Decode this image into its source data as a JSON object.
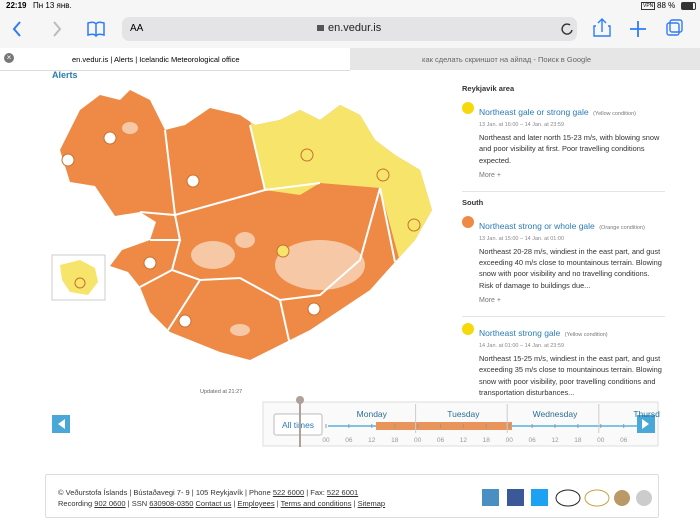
{
  "status_bar": {
    "time": "22:19",
    "date": "Пн 13 янв.",
    "vpn": "VPN",
    "battery": "88 %"
  },
  "browser": {
    "text_size": "AA",
    "url": "en.vedur.is",
    "tabs": [
      "en.vedur.is | Alerts | Icelandic Meteorological office",
      "как сделать скриншот на айпад - Поиск в Google"
    ]
  },
  "page": {
    "heading": "Alerts",
    "alerts": [
      {
        "section": "Reykjavik area",
        "items": [
          {
            "title": "Northeast gale or strong gale",
            "condition": "(Yellow condition)",
            "level": "yellow",
            "time": "13 Jan. at 16:00 – 14 Jan. at 23:59",
            "text": "Northeast and later north 15-23 m/s, with blowing snow and poor visibility at first. Poor travelling conditions expected.",
            "more": "More +"
          }
        ]
      },
      {
        "section": "South",
        "items": [
          {
            "title": "Northeast strong or whole gale",
            "condition": "(Orange condition)",
            "level": "orange",
            "time": "13 Jan. at 15:00 – 14 Jan. at 01:00",
            "text": "Northeast 20-28 m/s, windiest in the east part, and gust exceeding 40 m/s close to mountainous terrain. Blowing snow with poor visibility and no travelling conditions. Risk of damage to buildings due...",
            "more": "More +"
          },
          {
            "title": "Northeast strong gale",
            "condition": "(Yellow condition)",
            "level": "yellow",
            "time": "14 Jan. at 01:00 – 14 Jan. at 23:59",
            "text": "Northeast 15-25 m/s, windiest in the east part, and gust exceeding 35 m/s close to mountainous terrain. Blowing snow with poor visibility, poor travelling conditions and transportation disturbances..."
          }
        ]
      }
    ],
    "timeline": {
      "updated": "Updated at 21:27",
      "all_times": "All times",
      "days": [
        "Monday",
        "Tuesday",
        "Wednesday",
        "Thursd"
      ],
      "hours": [
        "00",
        "06",
        "12",
        "18",
        "00",
        "06",
        "12",
        "18",
        "00",
        "06",
        "12",
        "18",
        "00",
        "06"
      ]
    }
  },
  "footer": {
    "lines": [
      [
        {
          "text": "© Veðurstofa Íslands | Bústaðavegi 7- 9 | 105 Reykjavík | Phone "
        },
        {
          "text": "522 6000",
          "link": true
        },
        {
          "text": " | Fax: "
        },
        {
          "text": "522 6001",
          "link": true
        }
      ],
      [
        {
          "text": "Recording "
        },
        {
          "text": "902 0600",
          "link": true
        },
        {
          "text": " | SSN "
        },
        {
          "text": "630908-0350",
          "link": true
        },
        {
          "text": " "
        },
        {
          "text": "Contact us",
          "link": true
        },
        {
          "text": " | "
        },
        {
          "text": "Employees",
          "link": true
        },
        {
          "text": " | "
        },
        {
          "text": "Terms and conditions",
          "link": true
        },
        {
          "text": " | "
        },
        {
          "text": "Sitemap",
          "link": true
        }
      ]
    ]
  }
}
